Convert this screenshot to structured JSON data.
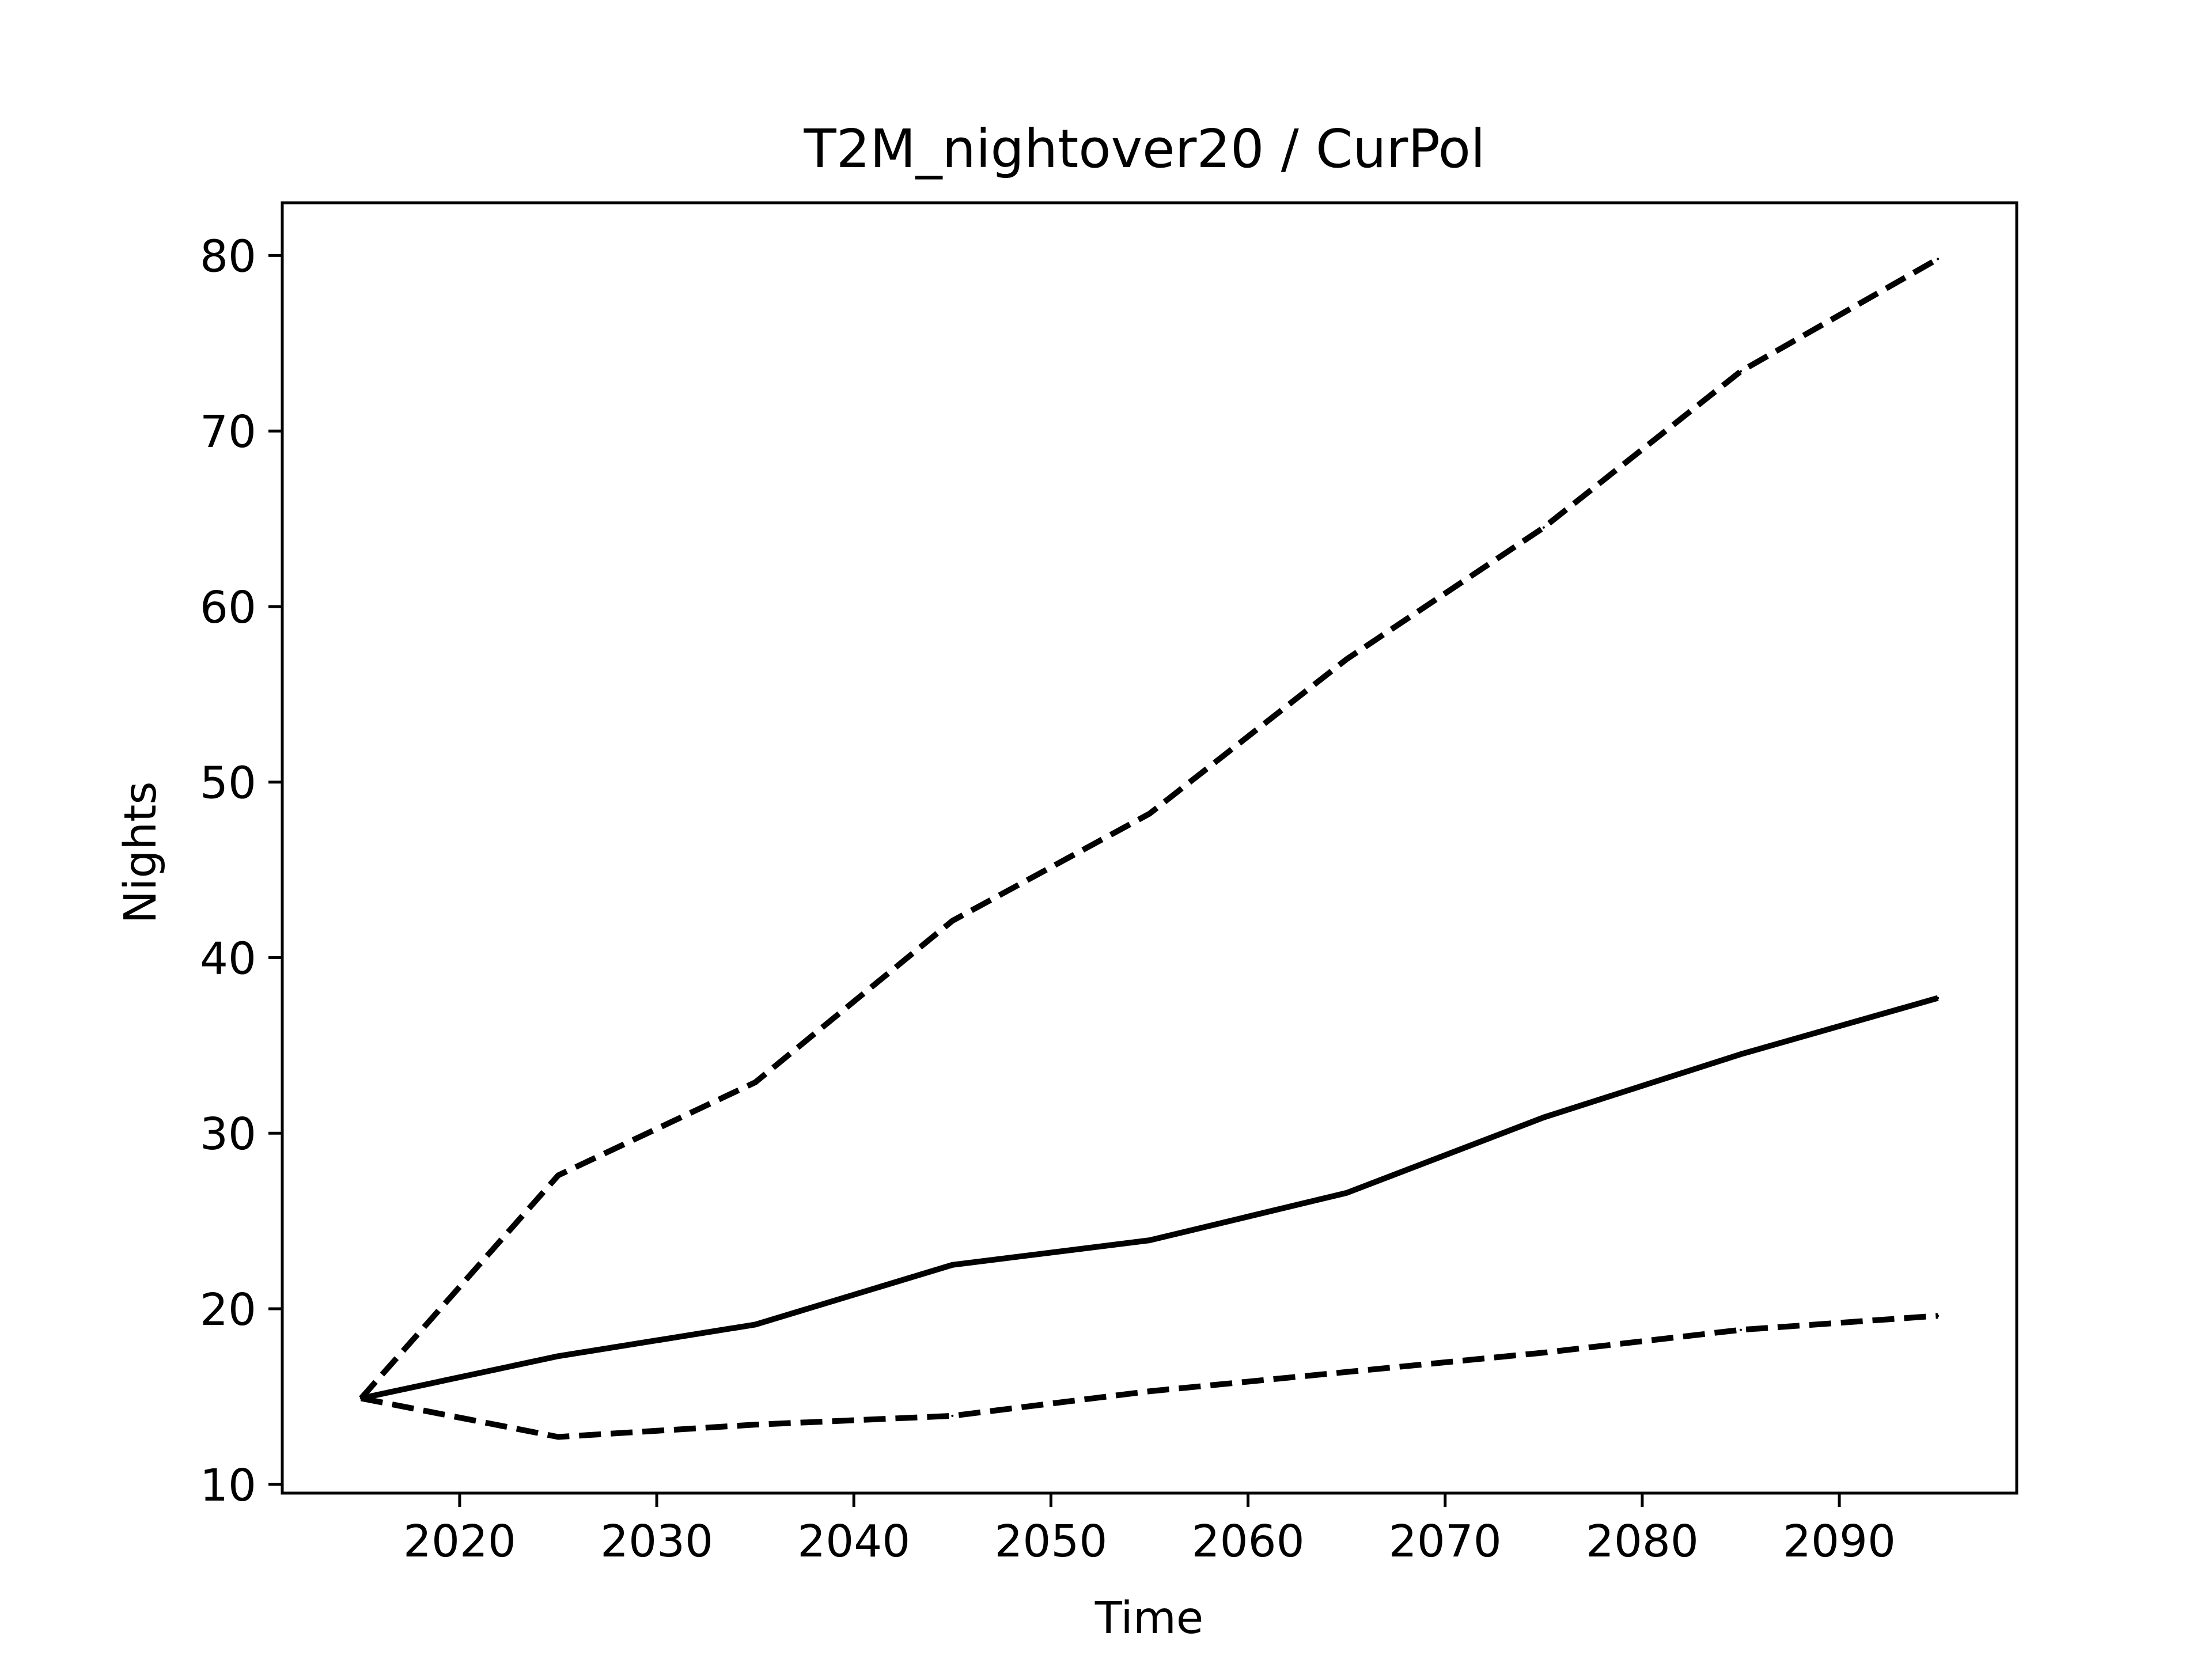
{
  "chart_data": {
    "type": "line",
    "title": "T2M_nightover20 / CurPol",
    "xlabel": "Time",
    "ylabel": "Nights",
    "xlim": [
      2011,
      2099
    ],
    "ylim": [
      9.5,
      83
    ],
    "xticks": [
      2020,
      2030,
      2040,
      2050,
      2060,
      2070,
      2080,
      2090
    ],
    "yticks": [
      10,
      20,
      30,
      40,
      50,
      60,
      70,
      80
    ],
    "grid": false,
    "legend": "none",
    "x": [
      2015,
      2025,
      2035,
      2045,
      2055,
      2065,
      2075,
      2085,
      2095
    ],
    "series": [
      {
        "style": "solid",
        "color": "#000000",
        "values": [
          14.9,
          17.3,
          19.1,
          22.5,
          23.9,
          26.6,
          30.9,
          34.5,
          37.7
        ]
      },
      {
        "style": "dashed",
        "color": "#000000",
        "values": [
          14.9,
          27.6,
          32.9,
          42.1,
          48.2,
          57.0,
          64.5,
          73.4,
          79.8
        ]
      },
      {
        "style": "dashed",
        "color": "#000000",
        "values": [
          14.9,
          12.7,
          13.4,
          13.9,
          15.3,
          16.4,
          17.5,
          18.8,
          19.6
        ]
      }
    ]
  }
}
